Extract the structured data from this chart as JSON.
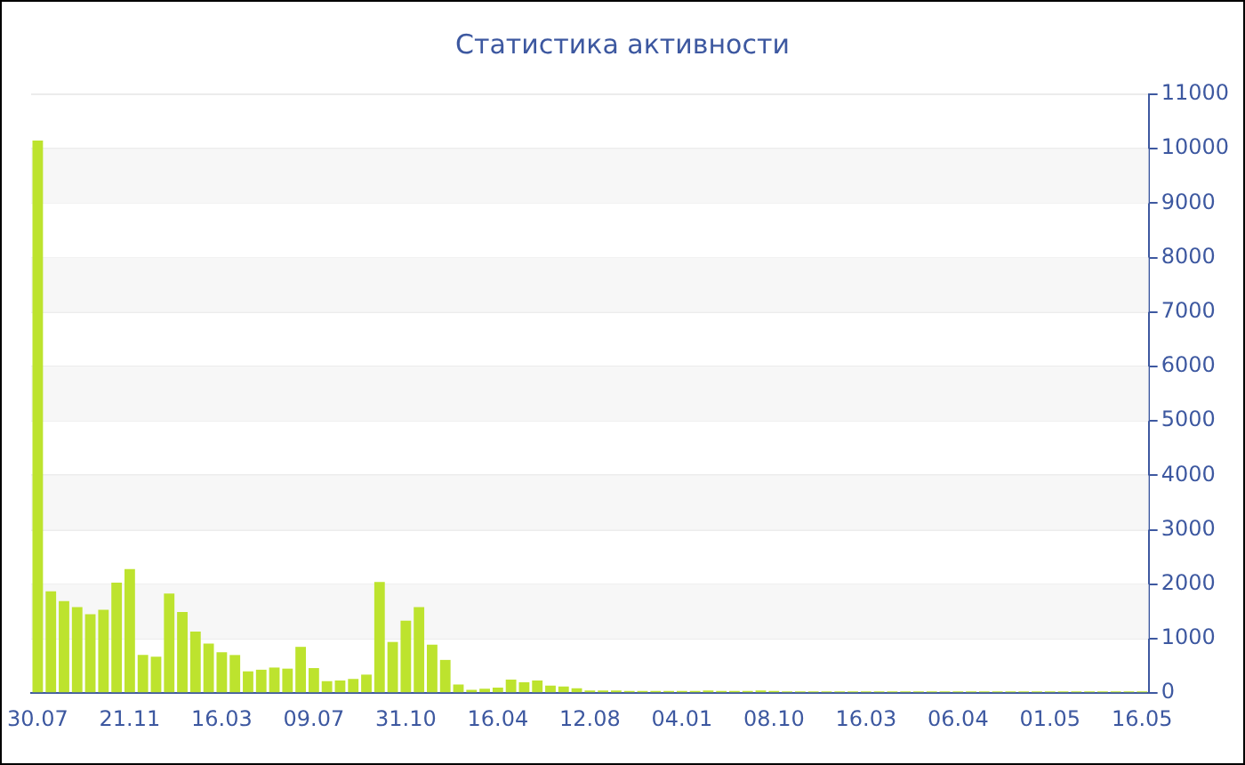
{
  "chart_data": {
    "type": "bar",
    "title": "Статистика активности",
    "categories": [
      "30.07",
      null,
      null,
      null,
      null,
      null,
      null,
      "21.11",
      null,
      null,
      null,
      null,
      null,
      null,
      "16.03",
      null,
      null,
      null,
      null,
      null,
      null,
      "09.07",
      null,
      null,
      null,
      null,
      null,
      null,
      "31.10",
      null,
      null,
      null,
      null,
      null,
      null,
      "16.04",
      null,
      null,
      null,
      null,
      null,
      null,
      "12.08",
      null,
      null,
      null,
      null,
      null,
      null,
      "04.01",
      null,
      null,
      null,
      null,
      null,
      null,
      "08.10",
      null,
      null,
      null,
      null,
      null,
      null,
      "16.03",
      null,
      null,
      null,
      null,
      null,
      null,
      "06.04",
      null,
      null,
      null,
      null,
      null,
      null,
      "01.05",
      null,
      null,
      null,
      null,
      null,
      null,
      "16.05"
    ],
    "values": [
      10150,
      1870,
      1690,
      1580,
      1450,
      1530,
      2030,
      2280,
      700,
      670,
      1830,
      1490,
      1130,
      910,
      750,
      700,
      400,
      430,
      470,
      450,
      850,
      460,
      220,
      230,
      260,
      340,
      2040,
      940,
      1330,
      1580,
      890,
      610,
      160,
      60,
      80,
      100,
      250,
      200,
      230,
      140,
      120,
      90,
      50,
      50,
      50,
      40,
      40,
      40,
      40,
      40,
      40,
      50,
      40,
      40,
      40,
      50,
      40,
      30,
      30,
      30,
      30,
      30,
      30,
      30,
      30,
      30,
      30,
      30,
      30,
      30,
      30,
      30,
      30,
      30,
      30,
      30,
      30,
      30,
      30,
      30,
      30,
      30,
      30,
      30,
      30
    ],
    "color": "#bde32e",
    "ylim": [
      0,
      11000
    ],
    "yticks": [
      0,
      1000,
      2000,
      3000,
      4000,
      5000,
      6000,
      7000,
      8000,
      9000,
      10000,
      11000
    ],
    "grid": "y"
  }
}
